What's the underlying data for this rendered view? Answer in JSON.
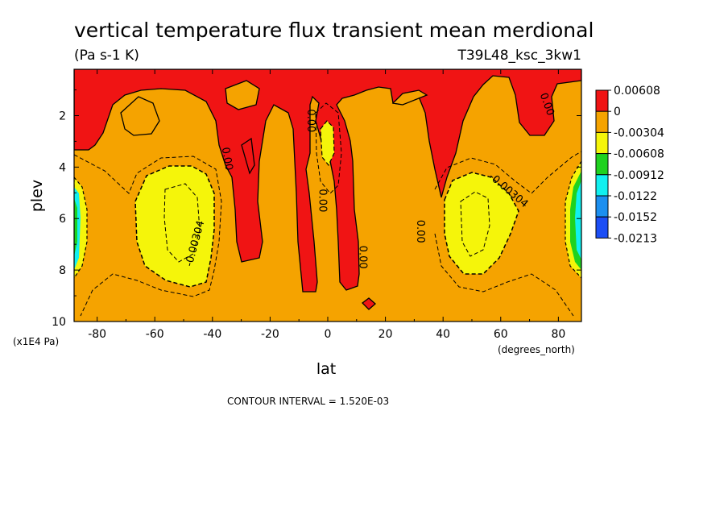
{
  "chart_data": {
    "type": "heatmap",
    "title": "vertical temperature flux transient mean merdional",
    "units": "(Pa s-1 K)",
    "run_label": "T39L48_ksc_3kw1",
    "xlabel": "lat",
    "xunits": "(degrees_north)",
    "ylabel": "plev",
    "yunits": "(x1E4 Pa)",
    "xlim": [
      -88,
      88
    ],
    "ylim": [
      10,
      0.2
    ],
    "x_ticks": [
      -80,
      -60,
      -40,
      -20,
      0,
      20,
      40,
      60,
      80
    ],
    "x_tick_labels": [
      "-80",
      "-60",
      "-40",
      "-20",
      "0",
      "20",
      "40",
      "60",
      "80"
    ],
    "y_ticks": [
      2,
      4,
      6,
      8,
      10
    ],
    "y_tick_labels": [
      "2",
      "4",
      "6",
      "8",
      "10"
    ],
    "contour_interval_text": "CONTOUR INTERVAL = 1.520E-03",
    "colorbar": {
      "labels": [
        "0.00608",
        "0",
        "-0.00304",
        "-0.00608",
        "-0.00912",
        "-0.0122",
        "-0.0152",
        "-0.0213"
      ],
      "colors": [
        "#f01414",
        "#f5a300",
        "#f5f50a",
        "#1fd21f",
        "#11f0f0",
        "#1c8ff0",
        "#1c4ef5"
      ]
    },
    "contour_labels": [
      {
        "text": "0.00",
        "lat": -36,
        "plev": 3.7,
        "angle": 80
      },
      {
        "text": "0.00",
        "lat": -7,
        "plev": 2.2,
        "angle": 90
      },
      {
        "text": "0.00",
        "lat": -3,
        "plev": 5.3,
        "angle": 90
      },
      {
        "text": "0.00",
        "lat": 11,
        "plev": 7.5,
        "angle": 90
      },
      {
        "text": "0.00",
        "lat": 31,
        "plev": 6.5,
        "angle": 90
      },
      {
        "text": "0.00",
        "lat": 75,
        "plev": 1.6,
        "angle": 70
      },
      {
        "text": "-0.00304",
        "lat": -45,
        "plev": 7.0,
        "angle": -75
      },
      {
        "text": "-0.00304",
        "lat": 62,
        "plev": 5.0,
        "angle": 40
      }
    ],
    "regions": [
      {
        "class": "0 to -0.00304",
        "color": "#f5a300",
        "description": "background field"
      },
      {
        "class": "0.00608 to 0",
        "color": "#f01414",
        "description": "upper band and deep tongues near -30, 0 and 10"
      },
      {
        "class": "-0.00304 to -0.00608",
        "color": "#f5f50a",
        "description": "cells centered near -50 and 50 at 6 plev"
      },
      {
        "class": "< -0.00608",
        "color": "#11f0f0",
        "description": "narrow polar bands near -85 and 85"
      }
    ]
  }
}
